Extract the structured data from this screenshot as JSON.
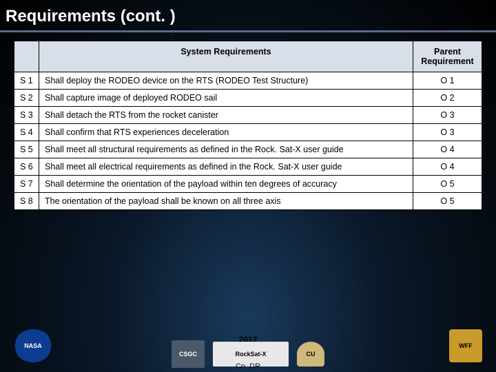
{
  "title": "Requirements (cont. )",
  "table": {
    "headers": {
      "id": "",
      "req": "System Requirements",
      "parent": "Parent Requirement"
    },
    "rows": [
      {
        "id": "S 1",
        "req": "Shall deploy the RODEO device on the RTS (RODEO Test Structure)",
        "parent": "O 1"
      },
      {
        "id": "S 2",
        "req": "Shall capture image of deployed RODEO sail",
        "parent": "O 2"
      },
      {
        "id": "S 3",
        "req": "Shall detach the RTS from the rocket canister",
        "parent": "O 3"
      },
      {
        "id": "S 4",
        "req": "Shall confirm that RTS experiences deceleration",
        "parent": "O 3"
      },
      {
        "id": "S 5",
        "req": "Shall meet all structural requirements as defined in the Rock. Sat-X user guide",
        "parent": "O 4"
      },
      {
        "id": "S 6",
        "req": "Shall meet all electrical requirements as defined in the Rock. Sat-X user guide",
        "parent": "O 4"
      },
      {
        "id": "S 7",
        "req": "Shall determine the orientation of the payload within ten degrees of accuracy",
        "parent": "O 5"
      },
      {
        "id": "S 8",
        "req": "The orientation of the payload shall be known on all three axis",
        "parent": "O 5"
      }
    ]
  },
  "footer": {
    "year": "2012",
    "codr": "Co. DR",
    "logos": {
      "nasa": "NASA",
      "csgc": "CSGC",
      "rocksat": "RockSat-X",
      "cu": "CU",
      "wff": "WFF"
    }
  },
  "style": {
    "title_fontsize": 24,
    "table_fontsize": 12.5,
    "header_bg": "#d8dfe8",
    "cell_bg": "#ffffff",
    "border_color": "#000000",
    "title_color": "#ffffff",
    "title_underline": "#5a6a8a",
    "bg_gradient": [
      "#1a3a5c",
      "#0a1828",
      "#000000"
    ]
  }
}
